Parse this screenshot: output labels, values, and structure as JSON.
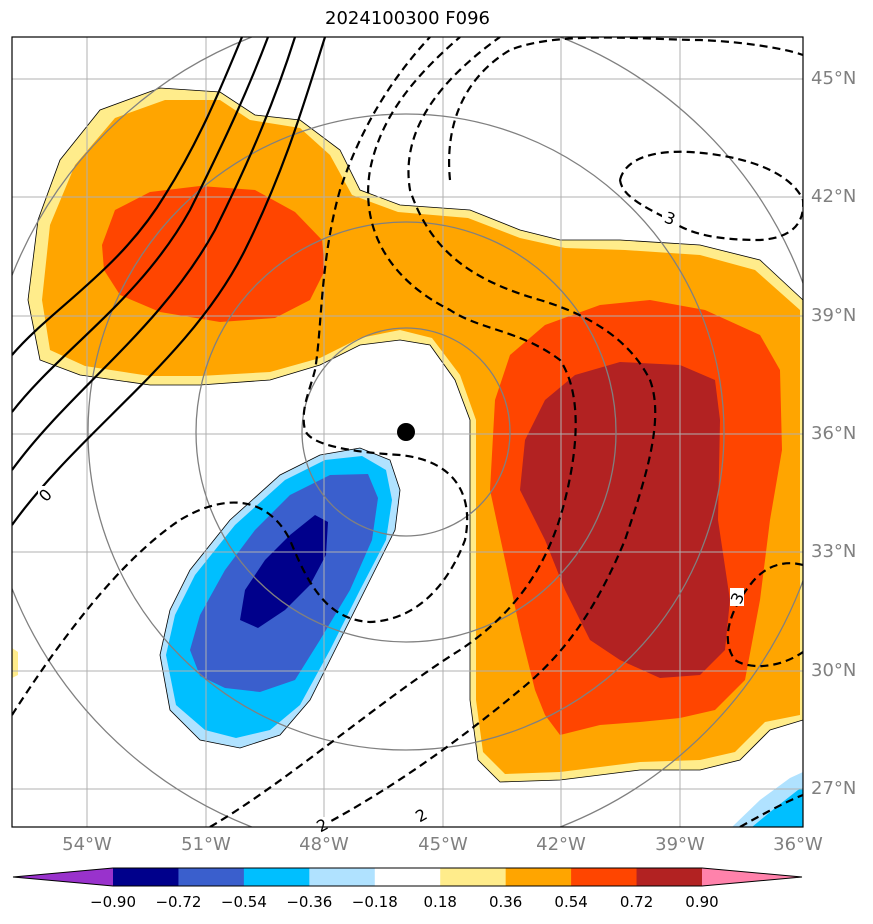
{
  "title": "2024100300 F096",
  "lat_labels": [
    "45°N",
    "42°N",
    "39°N",
    "36°N",
    "33°N",
    "30°N",
    "27°N"
  ],
  "lon_labels": [
    "54°W",
    "51°W",
    "48°W",
    "45°W",
    "42°W",
    "39°W",
    "36°W"
  ],
  "contour_labels": [
    "0",
    "3",
    "3",
    "2",
    "2"
  ],
  "colorbar": {
    "ticks": [
      "−0.90",
      "−0.72",
      "−0.54",
      "−0.36",
      "−0.18",
      "0.18",
      "0.36",
      "0.54",
      "0.72",
      "0.90"
    ],
    "colors": [
      "#9932cc",
      "#00008b",
      "#3a5fcd",
      "#00bfff",
      "#b0e2ff",
      "#ffffff",
      "#ffec8b",
      "#ffa500",
      "#ff4500",
      "#b22222",
      "#ff82ab"
    ]
  },
  "colors": {
    "grid": "#b0b0b0",
    "range_rings": "#808080",
    "contour": "#000000",
    "center_marker": "#000000"
  }
}
